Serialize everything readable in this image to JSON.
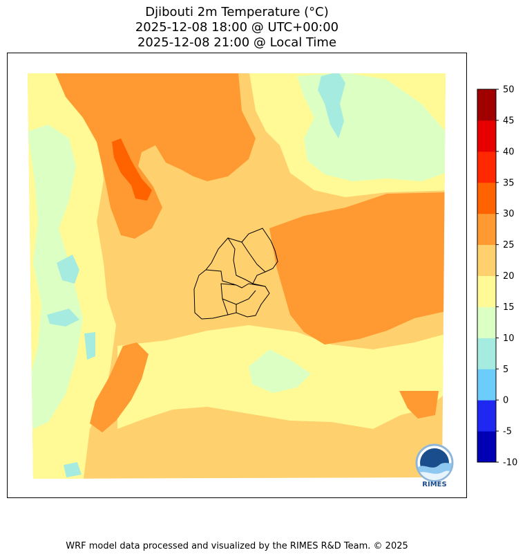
{
  "title": {
    "line1": "Djibouti 2m Temperature (°C)",
    "line2": "2025-12-08 18:00 @ UTC+00:00",
    "line3": "2025-12-08 21:00 @ Local Time"
  },
  "colorbar": {
    "levels": [
      {
        "label": "-10",
        "color": "#0000b4"
      },
      {
        "label": "-5",
        "color": "#1e28f0"
      },
      {
        "label": "0",
        "color": "#6ccdfa"
      },
      {
        "label": "5",
        "color": "#a5ebe0"
      },
      {
        "label": "10",
        "color": "#dcffc3"
      },
      {
        "label": "15",
        "color": "#fffa96"
      },
      {
        "label": "20",
        "color": "#ffd06e"
      },
      {
        "label": "25",
        "color": "#ff9932"
      },
      {
        "label": "30",
        "color": "#ff6300"
      },
      {
        "label": "35",
        "color": "#ff2800"
      },
      {
        "label": "40",
        "color": "#e60000"
      },
      {
        "label": "45",
        "color": "#a00000"
      },
      {
        "label": "50",
        "color": null
      }
    ]
  },
  "logo": {
    "text": "RIMES"
  },
  "footer": "WRF model data processed and visualized by the RIMES R&D Team. © 2025"
}
